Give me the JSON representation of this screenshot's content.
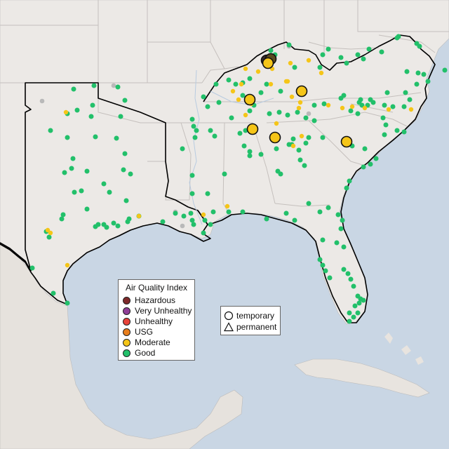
{
  "legend": {
    "title": "Air Quality Index",
    "categories": [
      {
        "label": "Hazardous",
        "color": "#7e2a2a"
      },
      {
        "label": "Very Unhealthy",
        "color": "#8f3f97"
      },
      {
        "label": "Unhealthy",
        "color": "#e8433a"
      },
      {
        "label": "USG",
        "color": "#e87e1c"
      },
      {
        "label": "Moderate",
        "color": "#f5c518"
      },
      {
        "label": "Good",
        "color": "#22c06a"
      }
    ]
  },
  "monitor_types": {
    "temporary": "temporary",
    "permanent": "permanent"
  },
  "colors": {
    "land": "#ece9e6",
    "water": "#c9d6e4",
    "border": "#c5c0bd",
    "region_outline": "#000000",
    "unavailable": "#b9b9b9",
    "good": "#22c06a",
    "moderate": "#f5c518"
  }
}
